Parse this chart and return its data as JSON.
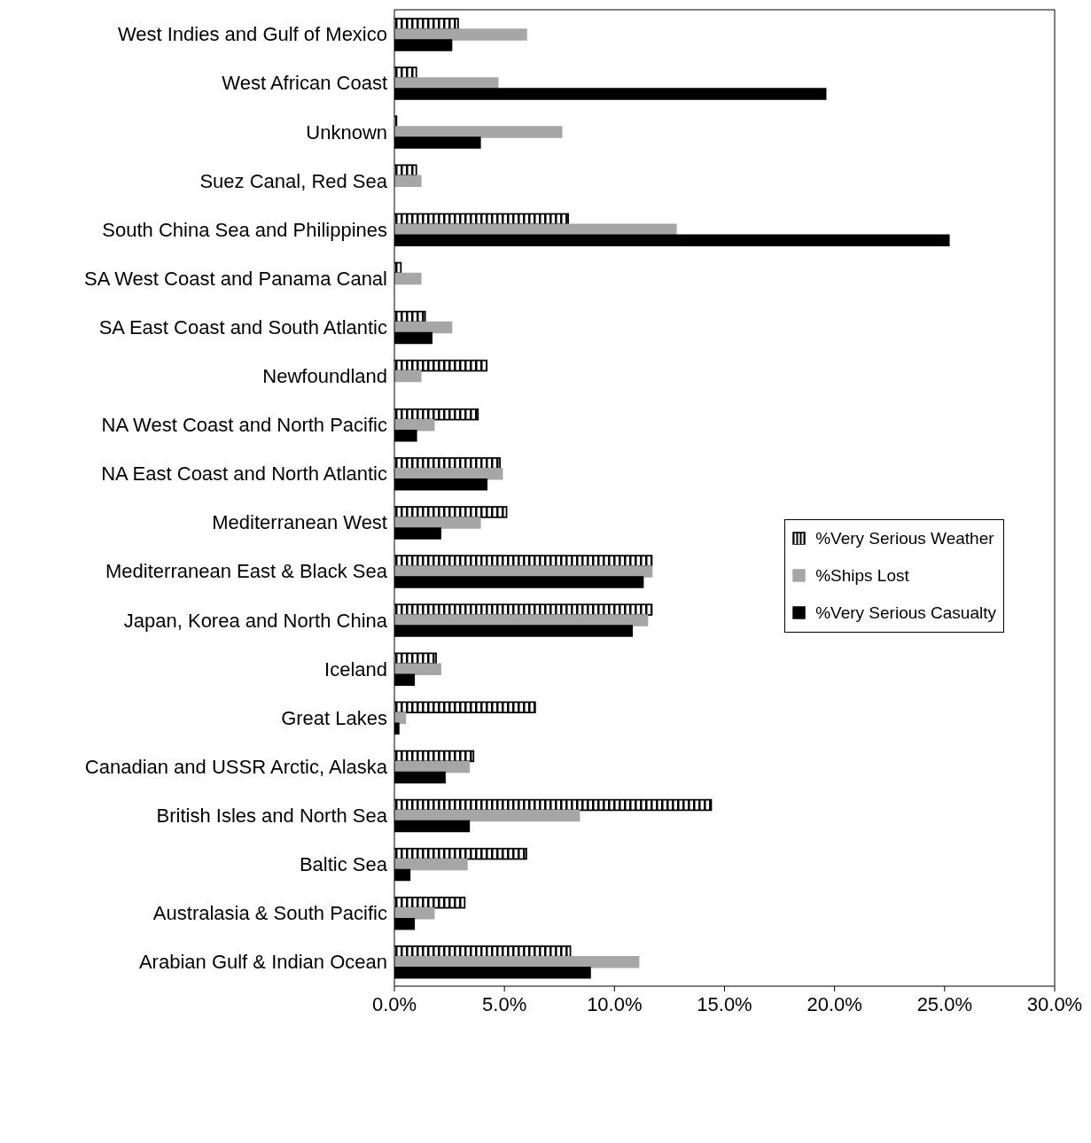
{
  "chart_data": {
    "type": "bar",
    "orientation": "horizontal",
    "categories": [
      "West Indies and Gulf of Mexico",
      "West African Coast",
      "Unknown",
      "Suez Canal, Red Sea",
      "South China Sea and Philippines",
      "SA West Coast and Panama Canal",
      "SA East Coast and South Atlantic",
      "Newfoundland",
      "NA West Coast and North Pacific",
      "NA East Coast and North Atlantic",
      "Mediterranean West",
      "Mediterranean East & Black Sea",
      "Japan, Korea and North China",
      "Iceland",
      "Great Lakes",
      "Canadian and USSR Arctic, Alaska",
      "British Isles and North Sea",
      "Baltic Sea",
      "Australasia & South Pacific",
      "Arabian Gulf & Indian Ocean"
    ],
    "series": [
      {
        "name": "%Very Serious Weather",
        "color": "#000000",
        "values": [
          2.9,
          1.0,
          0.1,
          1.0,
          7.9,
          0.3,
          1.4,
          4.2,
          3.8,
          4.8,
          5.1,
          11.7,
          11.7,
          1.9,
          6.4,
          3.6,
          14.4,
          6.0,
          3.2,
          8.0
        ]
      },
      {
        "name": "%Ships Lost",
        "color": "#a6a6a6",
        "values": [
          6.0,
          4.7,
          7.6,
          1.2,
          12.8,
          1.2,
          2.6,
          1.2,
          1.8,
          4.9,
          3.9,
          11.7,
          11.5,
          2.1,
          0.5,
          3.4,
          8.4,
          3.3,
          1.8,
          11.1
        ]
      },
      {
        "name": "%Very Serious Casualty",
        "color": "#000000",
        "values": [
          2.6,
          19.6,
          3.9,
          0,
          25.2,
          0,
          1.7,
          0,
          1.0,
          4.2,
          2.1,
          11.3,
          10.8,
          0.9,
          0.2,
          2.3,
          3.4,
          0.7,
          0.9,
          8.9
        ]
      }
    ],
    "xlim": [
      0,
      30
    ],
    "xticks": [
      {
        "value": 0,
        "label": "0.0%"
      },
      {
        "value": 5,
        "label": "5.0%"
      },
      {
        "value": 10,
        "label": "10.0%"
      },
      {
        "value": 15,
        "label": "15.0%"
      },
      {
        "value": 20,
        "label": "20.0%"
      },
      {
        "value": 25,
        "label": "25.0%"
      },
      {
        "value": 30,
        "label": "30.0%"
      }
    ],
    "grid": false,
    "legend": "right"
  }
}
